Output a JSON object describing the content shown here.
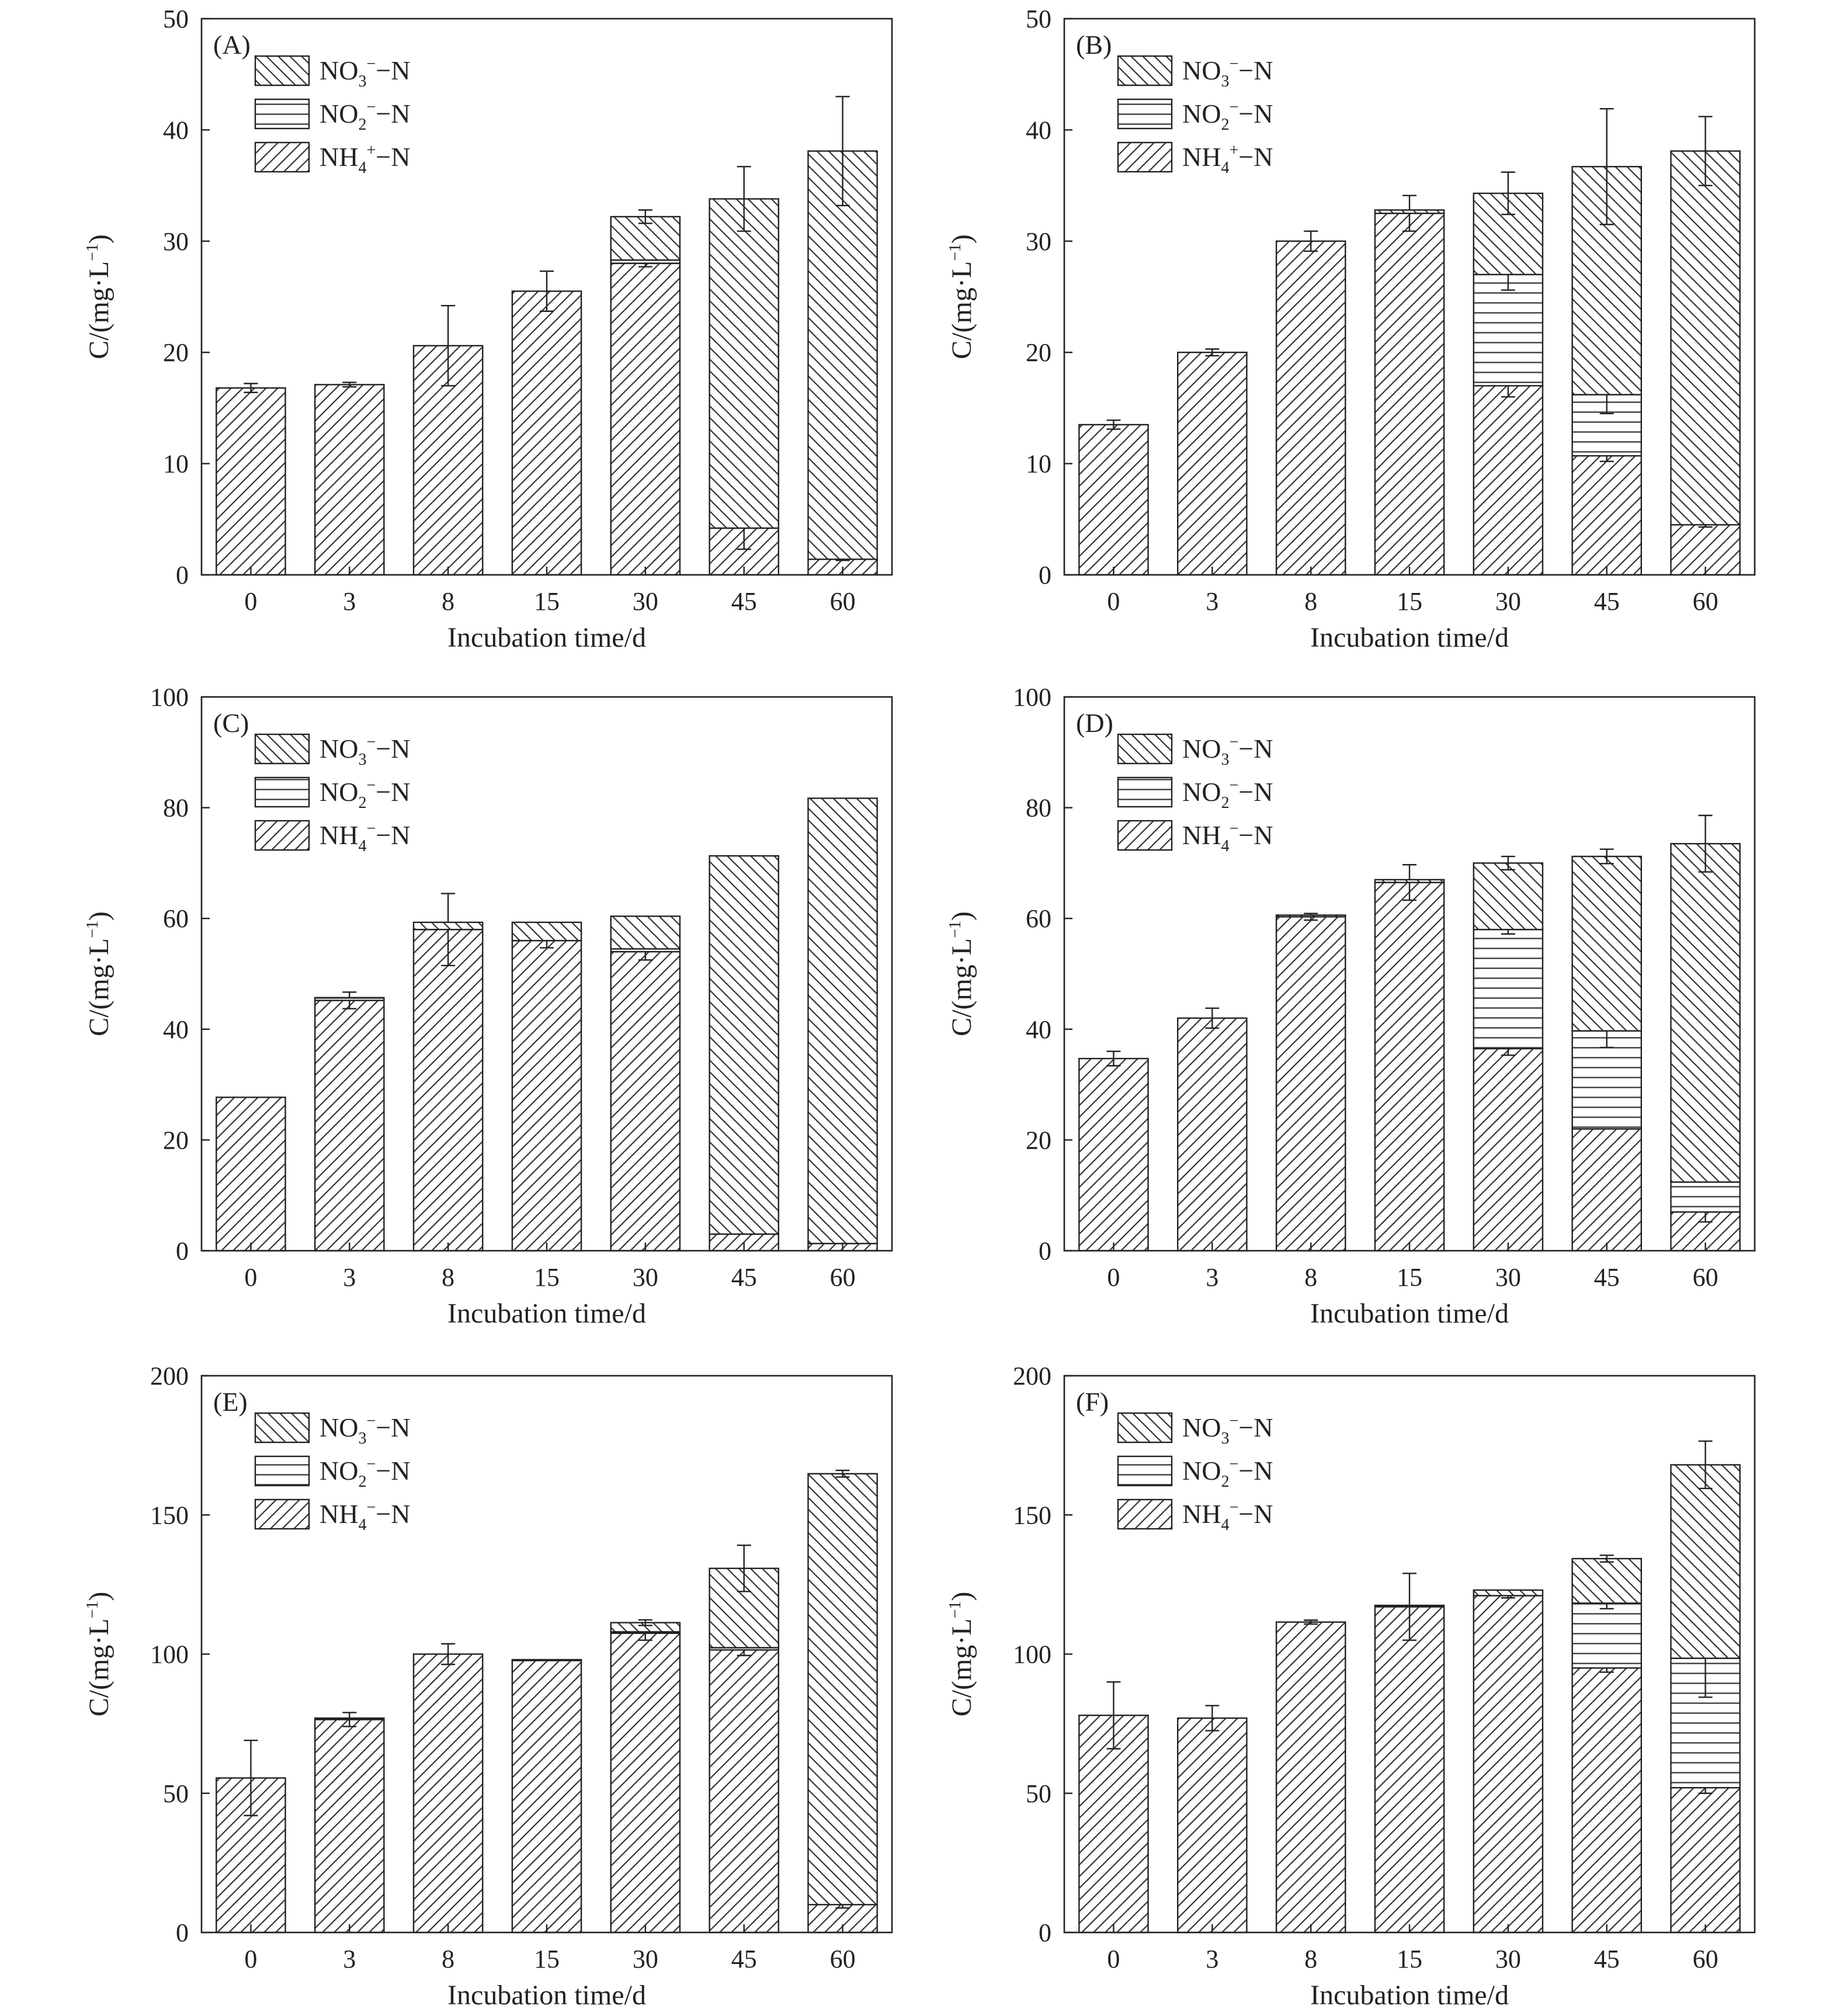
{
  "chart_data": [
    {
      "type": "bar",
      "stacked": true,
      "panel_label": "(A)",
      "xlabel": "Incubation time/d",
      "ylabel": "C/(mg·L⁻¹)",
      "ylim": [
        0,
        50
      ],
      "yticks": [
        0,
        10,
        20,
        30,
        40,
        50
      ],
      "categories": [
        "0",
        "3",
        "8",
        "15",
        "30",
        "45",
        "60"
      ],
      "legend": [
        {
          "label": "NO₃⁻−N",
          "pattern": "back-hatch"
        },
        {
          "label": "NO₂⁻−N",
          "pattern": "horizontal"
        },
        {
          "label": "NH₄⁺−N",
          "pattern": "forward-hatch"
        }
      ],
      "series": [
        {
          "pattern": "forward-hatch",
          "values": [
            16.8,
            17.1,
            20.6,
            25.5,
            28.0,
            4.2,
            1.4
          ],
          "errors": [
            0.4,
            0.2,
            3.6,
            1.8,
            0.3,
            1.9,
            0.1
          ]
        },
        {
          "pattern": "horizontal",
          "values": [
            0,
            0,
            0,
            0,
            0.3,
            0,
            0
          ],
          "errors": [
            0,
            0,
            0,
            0,
            0,
            0,
            0
          ]
        },
        {
          "pattern": "back-hatch",
          "values": [
            0,
            0,
            0,
            0,
            3.9,
            29.6,
            36.7
          ],
          "errors": [
            0,
            0,
            0,
            0,
            0.6,
            2.9,
            4.9
          ]
        }
      ]
    },
    {
      "type": "bar",
      "stacked": true,
      "panel_label": "(B)",
      "xlabel": "Incubation time/d",
      "ylabel": "C/(mg·L⁻¹)",
      "ylim": [
        0,
        50
      ],
      "yticks": [
        0,
        10,
        20,
        30,
        40,
        50
      ],
      "categories": [
        "0",
        "3",
        "8",
        "15",
        "30",
        "45",
        "60"
      ],
      "legend": [
        {
          "label": "NO₃⁻−N",
          "pattern": "back-hatch"
        },
        {
          "label": "NO₂⁻−N",
          "pattern": "horizontal"
        },
        {
          "label": "NH₄⁺−N",
          "pattern": "forward-hatch"
        }
      ],
      "series": [
        {
          "pattern": "forward-hatch",
          "values": [
            13.5,
            20.0,
            30.0,
            32.5,
            17.0,
            10.7,
            4.5
          ],
          "errors": [
            0.4,
            0.3,
            0.9,
            1.6,
            1.0,
            0.5,
            0.2
          ]
        },
        {
          "pattern": "horizontal",
          "values": [
            0,
            0,
            0,
            0,
            10.0,
            5.5,
            0
          ],
          "errors": [
            0,
            0,
            0,
            0,
            1.4,
            1.7,
            0
          ]
        },
        {
          "pattern": "back-hatch",
          "values": [
            0,
            0,
            0,
            0.3,
            7.3,
            20.5,
            33.6
          ],
          "errors": [
            0,
            0,
            0,
            0,
            1.9,
            5.2,
            3.1
          ]
        }
      ]
    },
    {
      "type": "bar",
      "stacked": true,
      "panel_label": "(C)",
      "xlabel": "Incubation time/d",
      "ylabel": "C/(mg·L⁻¹)",
      "ylim": [
        0,
        100
      ],
      "yticks": [
        0,
        20,
        40,
        60,
        80,
        100
      ],
      "categories": [
        "0",
        "3",
        "8",
        "15",
        "30",
        "45",
        "60"
      ],
      "legend": [
        {
          "label": "NO₃⁻−N",
          "pattern": "back-hatch"
        },
        {
          "label": "NO₂⁻−N",
          "pattern": "horizontal"
        },
        {
          "label": "NH₄⁻−N",
          "pattern": "forward-hatch"
        }
      ],
      "series": [
        {
          "pattern": "forward-hatch",
          "values": [
            27.7,
            45.2,
            58.0,
            56.0,
            54.0,
            3.0,
            1.3
          ],
          "errors": [
            0,
            1.5,
            6.5,
            1.3,
            1.5,
            0,
            0
          ]
        },
        {
          "pattern": "horizontal",
          "values": [
            0,
            0.5,
            0,
            0,
            0.5,
            0,
            0
          ],
          "errors": [
            0,
            0,
            0,
            0,
            0,
            0,
            0
          ]
        },
        {
          "pattern": "back-hatch",
          "values": [
            0,
            0,
            1.3,
            3.3,
            5.9,
            68.3,
            80.4
          ],
          "errors": [
            0,
            0,
            0,
            0,
            0,
            0,
            0
          ]
        }
      ]
    },
    {
      "type": "bar",
      "stacked": true,
      "panel_label": "(D)",
      "xlabel": "Incubation time/d",
      "ylabel": "C/(mg·L⁻¹)",
      "ylim": [
        0,
        100
      ],
      "yticks": [
        0,
        20,
        40,
        60,
        80,
        100
      ],
      "categories": [
        "0",
        "3",
        "8",
        "15",
        "30",
        "45",
        "60"
      ],
      "legend": [
        {
          "label": "NO₃⁻−N",
          "pattern": "back-hatch"
        },
        {
          "label": "NO₂⁻−N",
          "pattern": "horizontal"
        },
        {
          "label": "NH₄⁻−N",
          "pattern": "forward-hatch"
        }
      ],
      "series": [
        {
          "pattern": "forward-hatch",
          "values": [
            34.7,
            42.0,
            60.3,
            66.5,
            36.5,
            22.0,
            7.0
          ],
          "errors": [
            1.3,
            1.8,
            0.6,
            3.2,
            1.2,
            0,
            1.8
          ]
        },
        {
          "pattern": "horizontal",
          "values": [
            0,
            0,
            0,
            0,
            21.5,
            17.7,
            5.4
          ],
          "errors": [
            0,
            0,
            0,
            0,
            0.8,
            3.0,
            0
          ]
        },
        {
          "pattern": "back-hatch",
          "values": [
            0,
            0,
            0.3,
            0.5,
            12.0,
            31.5,
            61.1
          ],
          "errors": [
            0,
            0,
            0,
            0,
            1.2,
            1.3,
            5.1
          ]
        }
      ]
    },
    {
      "type": "bar",
      "stacked": true,
      "panel_label": "(E)",
      "xlabel": "Incubation time/d",
      "ylabel": "C/(mg·L⁻¹)",
      "ylim": [
        0,
        200
      ],
      "yticks": [
        0,
        50,
        100,
        150,
        200
      ],
      "categories": [
        "0",
        "3",
        "8",
        "15",
        "30",
        "45",
        "60"
      ],
      "legend": [
        {
          "label": "NO₃⁻−N",
          "pattern": "back-hatch"
        },
        {
          "label": "NO₂⁻−N",
          "pattern": "horizontal"
        },
        {
          "label": "NH₄⁻−N",
          "pattern": "forward-hatch"
        }
      ],
      "series": [
        {
          "pattern": "forward-hatch",
          "values": [
            55.5,
            76.5,
            100.0,
            97.7,
            107.5,
            101.5,
            10.0
          ],
          "errors": [
            13.5,
            2.5,
            3.7,
            0,
            2.5,
            2.0,
            1.2
          ]
        },
        {
          "pattern": "horizontal",
          "values": [
            0,
            0.5,
            0,
            0.3,
            0.5,
            0.8,
            0
          ],
          "errors": [
            0,
            0,
            0,
            0,
            0,
            0,
            0
          ]
        },
        {
          "pattern": "back-hatch",
          "values": [
            0,
            0,
            0,
            0,
            3.3,
            28.5,
            154.8
          ],
          "errors": [
            0,
            0,
            0,
            0,
            1.0,
            8.3,
            1.2
          ]
        }
      ]
    },
    {
      "type": "bar",
      "stacked": true,
      "panel_label": "(F)",
      "xlabel": "Incubation time/d",
      "ylabel": "C/(mg·L⁻¹)",
      "ylim": [
        0,
        200
      ],
      "yticks": [
        0,
        50,
        100,
        150,
        200
      ],
      "categories": [
        "0",
        "3",
        "8",
        "15",
        "30",
        "45",
        "60"
      ],
      "legend": [
        {
          "label": "NO₃⁻−N",
          "pattern": "back-hatch"
        },
        {
          "label": "NO₂⁻−N",
          "pattern": "horizontal"
        },
        {
          "label": "NH₄⁻−N",
          "pattern": "forward-hatch"
        }
      ],
      "series": [
        {
          "pattern": "forward-hatch",
          "values": [
            78.0,
            77.0,
            111.5,
            117.0,
            121.0,
            95.0,
            52.0
          ],
          "errors": [
            12.0,
            4.5,
            0.7,
            12.0,
            0.8,
            1.5,
            2.0
          ]
        },
        {
          "pattern": "horizontal",
          "values": [
            0,
            0,
            0,
            0.5,
            0,
            23.3,
            46.5
          ],
          "errors": [
            0,
            0,
            0,
            0,
            0,
            2.0,
            14.0
          ]
        },
        {
          "pattern": "back-hatch",
          "values": [
            0,
            0,
            0,
            0,
            2.0,
            16.0,
            69.5
          ],
          "errors": [
            0,
            0,
            0,
            0,
            0,
            1.2,
            8.5
          ]
        }
      ]
    }
  ]
}
